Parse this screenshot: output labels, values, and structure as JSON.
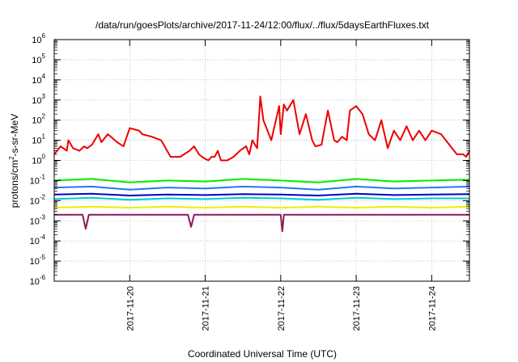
{
  "chart_data": {
    "type": "line",
    "title": "/data/run/goesPlots/archive/2017-11-24/12:00/flux/../flux/5daysEarthFluxes.txt",
    "xlabel": "Coordinated Universal Time (UTC)",
    "ylabel_parts": {
      "before": "protons/cm",
      "sup": "2",
      "after": "-s-sr-MeV"
    },
    "y_scale": "log",
    "ylim": [
      1e-06,
      1000000.0
    ],
    "y_ticks": [
      {
        "base": "10",
        "exp": "-6",
        "value": 1e-06
      },
      {
        "base": "10",
        "exp": "-5",
        "value": 1e-05
      },
      {
        "base": "10",
        "exp": "-4",
        "value": 0.0001
      },
      {
        "base": "10",
        "exp": "-3",
        "value": 0.001
      },
      {
        "base": "10",
        "exp": "-2",
        "value": 0.01
      },
      {
        "base": "10",
        "exp": "-1",
        "value": 0.1
      },
      {
        "base": "10",
        "exp": "0",
        "value": 1
      },
      {
        "base": "10",
        "exp": "1",
        "value": 10
      },
      {
        "base": "10",
        "exp": "2",
        "value": 100
      },
      {
        "base": "10",
        "exp": "3",
        "value": 1000
      },
      {
        "base": "10",
        "exp": "4",
        "value": 10000
      },
      {
        "base": "10",
        "exp": "5",
        "value": 100000
      },
      {
        "base": "10",
        "exp": "6",
        "value": 1000000
      }
    ],
    "xlim": [
      "2017-11-19 00:00",
      "2017-11-24 12:00"
    ],
    "x_ticks": [
      "2017-11-20",
      "2017-11-21",
      "2017-11-22",
      "2017-11-23",
      "2017-11-24"
    ],
    "grid": true,
    "series": [
      {
        "color": "#ee0000",
        "x": [
          "2017-11-19 00:00",
          "2017-11-19 02:00",
          "2017-11-19 04:00",
          "2017-11-19 04:30",
          "2017-11-19 06:00",
          "2017-11-19 08:00",
          "2017-11-19 09:30",
          "2017-11-19 10:30",
          "2017-11-19 12:00",
          "2017-11-19 14:00",
          "2017-11-19 15:00",
          "2017-11-19 17:00",
          "2017-11-19 18:00",
          "2017-11-19 20:00",
          "2017-11-19 22:00",
          "2017-11-20 00:00",
          "2017-11-20 03:00",
          "2017-11-20 04:00",
          "2017-11-20 07:00",
          "2017-11-20 10:00",
          "2017-11-20 13:00",
          "2017-11-20 16:00",
          "2017-11-20 19:00",
          "2017-11-20 20:30",
          "2017-11-20 22:00",
          "2017-11-20 23:00",
          "2017-11-21 00:00",
          "2017-11-21 01:00",
          "2017-11-21 02:00",
          "2017-11-21 03:00",
          "2017-11-21 04:00",
          "2017-11-21 05:00",
          "2017-11-21 07:00",
          "2017-11-21 09:00",
          "2017-11-21 11:00",
          "2017-11-21 13:00",
          "2017-11-21 14:00",
          "2017-11-21 15:00",
          "2017-11-21 16:30",
          "2017-11-21 17:30",
          "2017-11-21 18:30",
          "2017-11-21 21:00",
          "2017-11-21 23:30",
          "2017-11-22 00:00",
          "2017-11-22 01:00",
          "2017-11-22 02:00",
          "2017-11-22 04:00",
          "2017-11-22 06:00",
          "2017-11-22 08:00",
          "2017-11-22 10:00",
          "2017-11-22 11:00",
          "2017-11-22 13:00",
          "2017-11-22 15:00",
          "2017-11-22 17:00",
          "2017-11-22 18:00",
          "2017-11-22 19:30",
          "2017-11-22 21:00",
          "2017-11-22 22:00",
          "2017-11-23 00:00",
          "2017-11-23 02:00",
          "2017-11-23 04:00",
          "2017-11-23 06:00",
          "2017-11-23 08:00",
          "2017-11-23 10:00",
          "2017-11-23 12:00",
          "2017-11-23 14:00",
          "2017-11-23 16:00",
          "2017-11-23 18:00",
          "2017-11-23 20:00",
          "2017-11-23 22:00",
          "2017-11-24 00:00",
          "2017-11-24 03:00",
          "2017-11-24 06:00",
          "2017-11-24 08:00",
          "2017-11-24 10:00",
          "2017-11-24 11:00",
          "2017-11-24 12:00"
        ],
        "values": [
          2.0,
          5.0,
          3.0,
          10.0,
          4.0,
          3.0,
          5.0,
          4.0,
          6.0,
          20.0,
          8.0,
          20.0,
          15.0,
          8.0,
          5.0,
          40.0,
          30.0,
          20.0,
          15.0,
          10.0,
          1.5,
          1.5,
          3.0,
          5.0,
          2.0,
          1.5,
          1.2,
          1.0,
          1.5,
          1.5,
          3.0,
          1.0,
          1.0,
          1.5,
          3.0,
          5.0,
          2.0,
          10.0,
          4.0,
          1500.0,
          100.0,
          10.0,
          500.0,
          20.0,
          600.0,
          300.0,
          1000.0,
          20.0,
          200.0,
          10.0,
          5.0,
          6.0,
          300.0,
          10.0,
          8.0,
          15.0,
          10.0,
          300.0,
          500.0,
          200.0,
          20.0,
          10.0,
          100.0,
          4.0,
          30.0,
          10.0,
          50.0,
          10.0,
          30.0,
          10.0,
          30.0,
          20.0,
          5.0,
          2.0,
          2.0,
          1.5,
          3.0
        ]
      },
      {
        "color": "#00ee00",
        "x": [
          "2017-11-19 00:00",
          "2017-11-19 12:00",
          "2017-11-20 00:00",
          "2017-11-20 12:00",
          "2017-11-21 00:00",
          "2017-11-21 12:00",
          "2017-11-22 00:00",
          "2017-11-22 12:00",
          "2017-11-23 00:00",
          "2017-11-23 12:00",
          "2017-11-24 00:00",
          "2017-11-24 12:00"
        ],
        "values": [
          0.1,
          0.12,
          0.08,
          0.1,
          0.09,
          0.12,
          0.1,
          0.08,
          0.12,
          0.09,
          0.1,
          0.11
        ]
      },
      {
        "color": "#2277ff",
        "x": [
          "2017-11-19 00:00",
          "2017-11-19 12:00",
          "2017-11-20 00:00",
          "2017-11-20 12:00",
          "2017-11-21 00:00",
          "2017-11-21 12:00",
          "2017-11-22 00:00",
          "2017-11-22 12:00",
          "2017-11-23 00:00",
          "2017-11-23 12:00",
          "2017-11-24 00:00",
          "2017-11-24 12:00"
        ],
        "values": [
          0.045,
          0.05,
          0.035,
          0.045,
          0.04,
          0.05,
          0.045,
          0.035,
          0.05,
          0.04,
          0.045,
          0.05
        ]
      },
      {
        "color": "#0000cc",
        "x": [
          "2017-11-19 00:00",
          "2017-11-19 12:00",
          "2017-11-20 00:00",
          "2017-11-20 12:00",
          "2017-11-21 00:00",
          "2017-11-21 12:00",
          "2017-11-22 00:00",
          "2017-11-22 12:00",
          "2017-11-23 00:00",
          "2017-11-23 12:00",
          "2017-11-24 00:00",
          "2017-11-24 12:00"
        ],
        "values": [
          0.02,
          0.022,
          0.018,
          0.02,
          0.019,
          0.021,
          0.02,
          0.018,
          0.022,
          0.019,
          0.02,
          0.021
        ]
      },
      {
        "color": "#00cccc",
        "x": [
          "2017-11-19 00:00",
          "2017-11-19 12:00",
          "2017-11-20 00:00",
          "2017-11-20 12:00",
          "2017-11-21 00:00",
          "2017-11-21 12:00",
          "2017-11-22 00:00",
          "2017-11-22 12:00",
          "2017-11-23 00:00",
          "2017-11-23 12:00",
          "2017-11-24 00:00",
          "2017-11-24 12:00"
        ],
        "values": [
          0.012,
          0.014,
          0.011,
          0.013,
          0.012,
          0.014,
          0.013,
          0.011,
          0.014,
          0.012,
          0.013,
          0.013
        ]
      },
      {
        "color": "#eeee00",
        "x": [
          "2017-11-19 00:00",
          "2017-11-19 12:00",
          "2017-11-20 00:00",
          "2017-11-20 12:00",
          "2017-11-21 00:00",
          "2017-11-21 12:00",
          "2017-11-22 00:00",
          "2017-11-22 12:00",
          "2017-11-23 00:00",
          "2017-11-23 12:00",
          "2017-11-24 00:00",
          "2017-11-24 12:00"
        ],
        "values": [
          0.0045,
          0.005,
          0.0045,
          0.005,
          0.0045,
          0.005,
          0.0045,
          0.005,
          0.0045,
          0.005,
          0.0045,
          0.005
        ]
      },
      {
        "color": "#8b1a5a",
        "x": [
          "2017-11-19 00:00",
          "2017-11-19 09:00",
          "2017-11-19 10:00",
          "2017-11-19 11:00",
          "2017-11-20 00:00",
          "2017-11-20 18:30",
          "2017-11-20 19:30",
          "2017-11-20 20:30",
          "2017-11-21 00:00",
          "2017-11-22 00:00",
          "2017-11-22 00:30",
          "2017-11-22 01:00",
          "2017-11-22 02:00",
          "2017-11-23 00:00",
          "2017-11-24 00:00",
          "2017-11-24 12:00"
        ],
        "values": [
          0.002,
          0.002,
          0.0004,
          0.002,
          0.002,
          0.002,
          0.0005,
          0.002,
          0.002,
          0.002,
          0.0003,
          0.002,
          0.002,
          0.002,
          0.002,
          0.002
        ]
      }
    ]
  }
}
